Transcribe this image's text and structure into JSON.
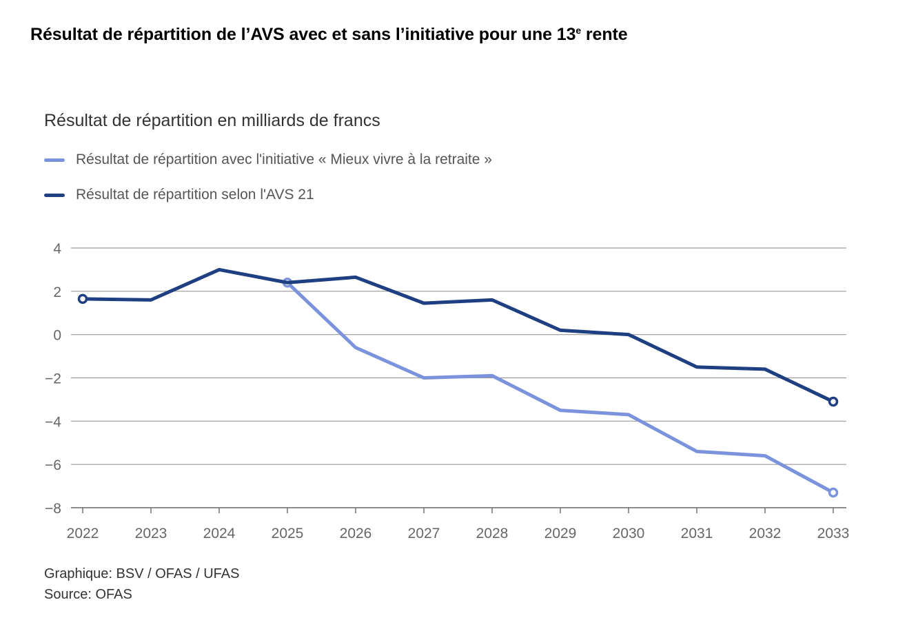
{
  "page": {
    "title_main": "Résultat de répartition de l’AVS avec et sans l’initiative pour une 13",
    "title_sup": "e",
    "title_tail": " rente",
    "footer_graphic": "Graphique: BSV / OFAS / UFAS",
    "footer_source": "Source: OFAS"
  },
  "chart_data": {
    "type": "line",
    "title": "Résultat de répartition en milliards de francs",
    "x": [
      "2022",
      "2023",
      "2024",
      "2025",
      "2026",
      "2027",
      "2028",
      "2029",
      "2030",
      "2031",
      "2032",
      "2033"
    ],
    "ylim": [
      -8,
      4
    ],
    "y_ticks": [
      4,
      2,
      0,
      -2,
      -4,
      -6,
      -8
    ],
    "y_tick_labels": [
      "4",
      "2",
      "0",
      "−2",
      "−4",
      "−6",
      "−8"
    ],
    "grid": true,
    "legend_position": "top-left",
    "series": [
      {
        "name": "Résultat de répartition avec l'initiative « Mieux vivre à la retraite »",
        "color": "#7b93dd",
        "values": [
          null,
          null,
          null,
          2.4,
          -0.6,
          -2.0,
          -1.9,
          -3.5,
          -3.7,
          -5.4,
          -5.6,
          -7.3
        ]
      },
      {
        "name": "Résultat de répartition selon l'AVS 21",
        "color": "#1f3f83",
        "values": [
          1.65,
          1.6,
          3.0,
          2.4,
          2.65,
          1.45,
          1.6,
          0.2,
          0.0,
          -1.5,
          -1.6,
          -3.1
        ]
      }
    ]
  }
}
